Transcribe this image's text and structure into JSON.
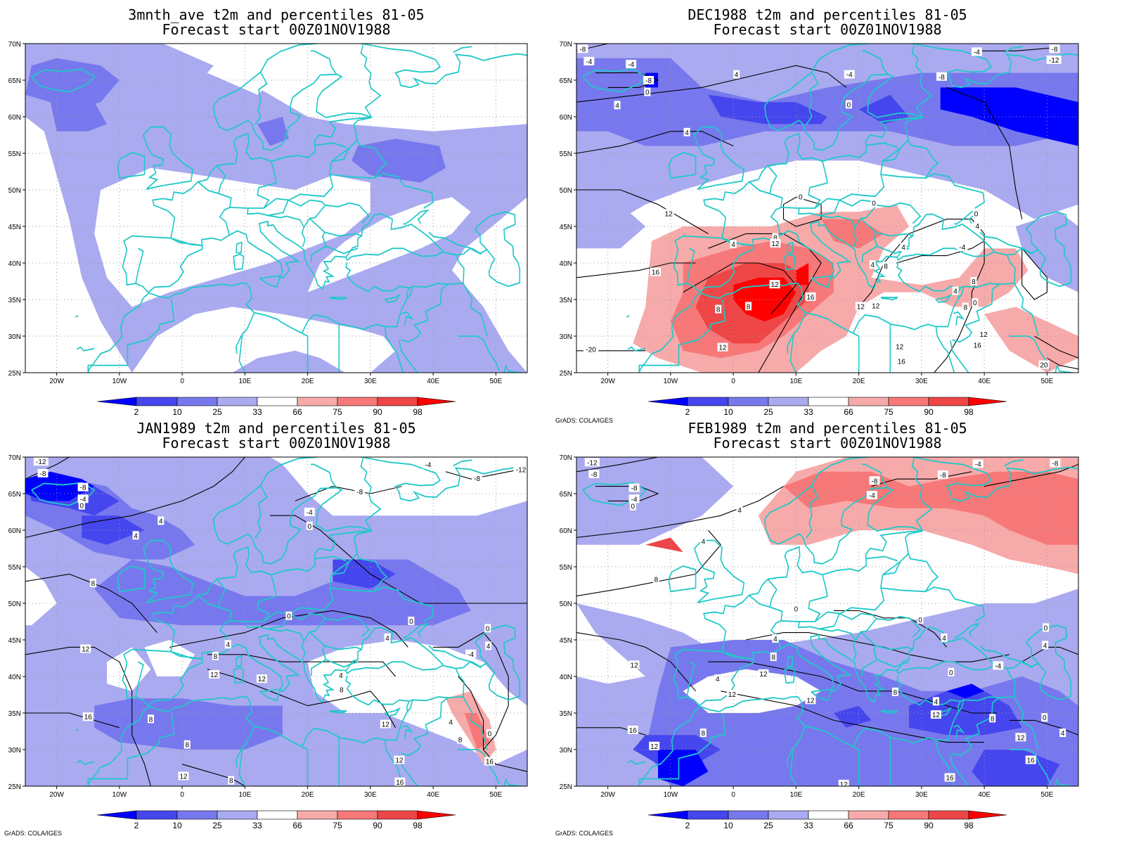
{
  "credit": "GrADS: COLA/IGES",
  "colors": {
    "c2": "#0000ff",
    "c10": "#4646ee",
    "c25": "#7878ee",
    "c33": "#aaaaf0",
    "neutral": "#ffffff",
    "c66": "#f7aaaa",
    "c75": "#f77878",
    "c90": "#ee4646",
    "c98": "#ff0000",
    "coast": "#20c8c8"
  },
  "colorbar_ticks": [
    "2",
    "10",
    "25",
    "33",
    "66",
    "75",
    "90",
    "98"
  ],
  "lon_ticks": [
    "20W",
    "10W",
    "0",
    "10E",
    "20E",
    "30E",
    "40E",
    "50E"
  ],
  "lat_ticks": [
    "70N",
    "65N",
    "60N",
    "55N",
    "50N",
    "45N",
    "40N",
    "35N",
    "30N",
    "25N"
  ],
  "panels": [
    {
      "id": "p1",
      "title1": "3mnth_ave t2m and percentiles 81-05",
      "title2": "Forecast start 00Z01NOV1988",
      "show_credit": false,
      "labels": []
    },
    {
      "id": "p2",
      "title1": "DEC1988 t2m and percentiles 81-05",
      "title2": "Forecast start 00Z01NOV1988",
      "show_credit": true,
      "labels": [
        {
          "t": "-8",
          "lon": -24,
          "lat": 69.3
        },
        {
          "t": "-4",
          "lon": -23,
          "lat": 67.6
        },
        {
          "t": "-4",
          "lon": -16.3,
          "lat": 67.2
        },
        {
          "t": "-8",
          "lon": -13.5,
          "lat": 65
        },
        {
          "t": "0",
          "lon": -13.7,
          "lat": 63.4
        },
        {
          "t": "4",
          "lon": -18.5,
          "lat": 61.6
        },
        {
          "t": "4",
          "lon": 0.5,
          "lat": 65.8
        },
        {
          "t": "4",
          "lon": -7.4,
          "lat": 57.9
        },
        {
          "t": "-4",
          "lon": 18.5,
          "lat": 65.8
        },
        {
          "t": "0",
          "lon": 18.4,
          "lat": 61.7
        },
        {
          "t": "-8",
          "lon": 33.2,
          "lat": 65.5
        },
        {
          "t": "-4",
          "lon": 38.8,
          "lat": 68.9
        },
        {
          "t": "-8",
          "lon": 51.2,
          "lat": 69.3
        },
        {
          "t": "-12",
          "lon": 51.1,
          "lat": 67.8
        },
        {
          "t": "12",
          "lon": -10.3,
          "lat": 46.8
        },
        {
          "t": "0",
          "lon": 10.7,
          "lat": 49.1
        },
        {
          "t": "0",
          "lon": 22.4,
          "lat": 48.2
        },
        {
          "t": "0",
          "lon": 38.7,
          "lat": 46.8
        },
        {
          "t": "4",
          "lon": 38.9,
          "lat": 45.1
        },
        {
          "t": "8",
          "lon": 6.7,
          "lat": 43.5
        },
        {
          "t": "12",
          "lon": 6.7,
          "lat": 42.7
        },
        {
          "t": "4",
          "lon": 0,
          "lat": 42.6
        },
        {
          "t": "16",
          "lon": -12.4,
          "lat": 38.8
        },
        {
          "t": "12",
          "lon": 6.6,
          "lat": 37.1
        },
        {
          "t": "16",
          "lon": 12.3,
          "lat": 35.4
        },
        {
          "t": "8",
          "lon": -2.4,
          "lat": 33.7
        },
        {
          "t": "8",
          "lon": 2.4,
          "lat": 34.1
        },
        {
          "t": "12",
          "lon": 20.3,
          "lat": 34.1
        },
        {
          "t": "12",
          "lon": 22.7,
          "lat": 34.2
        },
        {
          "t": "4",
          "lon": 22.2,
          "lat": 39.8
        },
        {
          "t": "8",
          "lon": 24.3,
          "lat": 39.6
        },
        {
          "t": "4",
          "lon": 27.1,
          "lat": 42.2
        },
        {
          "t": "-4",
          "lon": 36.5,
          "lat": 42.2
        },
        {
          "t": "4",
          "lon": 35.4,
          "lat": 36.2
        },
        {
          "t": "8",
          "lon": 37,
          "lat": 34
        },
        {
          "t": "0",
          "lon": 38.5,
          "lat": 34.6
        },
        {
          "t": "8",
          "lon": 38.3,
          "lat": 37.5
        },
        {
          "t": "12",
          "lon": 39.9,
          "lat": 30.3
        },
        {
          "t": "16",
          "lon": 38.9,
          "lat": 28.8
        },
        {
          "t": "12",
          "lon": 26.5,
          "lat": 28.6
        },
        {
          "t": "16",
          "lon": 26.8,
          "lat": 26.6
        },
        {
          "t": "12",
          "lon": -1.7,
          "lat": 28.5
        },
        {
          "t": "20",
          "lon": 49.5,
          "lat": 26.1
        },
        {
          "t": "-20",
          "lon": -22.7,
          "lat": 28.2
        }
      ]
    },
    {
      "id": "p3",
      "title1": "JAN1989 t2m and percentiles 81-05",
      "title2": "Forecast start 00Z01NOV1988",
      "show_credit": true,
      "labels": [
        {
          "t": "-12",
          "lon": -22.5,
          "lat": 69.4
        },
        {
          "t": "-8",
          "lon": -22.2,
          "lat": 67.8
        },
        {
          "t": "-8",
          "lon": -15.8,
          "lat": 65.9
        },
        {
          "t": "-4",
          "lon": -15.8,
          "lat": 64.3
        },
        {
          "t": "0",
          "lon": -16,
          "lat": 63.4
        },
        {
          "t": "4",
          "lon": -3.4,
          "lat": 61.3
        },
        {
          "t": "4",
          "lon": -7.4,
          "lat": 59.3
        },
        {
          "t": "8",
          "lon": -14.2,
          "lat": 52.8
        },
        {
          "t": "-4",
          "lon": 20.3,
          "lat": 62.5
        },
        {
          "t": "0",
          "lon": 20.3,
          "lat": 60.6
        },
        {
          "t": "-8",
          "lon": 28.3,
          "lat": 65.3
        },
        {
          "t": "-4",
          "lon": 39.2,
          "lat": 69
        },
        {
          "t": "-8",
          "lon": 47,
          "lat": 67.1
        },
        {
          "t": "-12",
          "lon": 54,
          "lat": 68.3
        },
        {
          "t": "12",
          "lon": -15.4,
          "lat": 43.8
        },
        {
          "t": "0",
          "lon": 17,
          "lat": 48.3
        },
        {
          "t": "0",
          "lon": 36.5,
          "lat": 47.6
        },
        {
          "t": "4",
          "lon": 32.7,
          "lat": 45.3
        },
        {
          "t": "0",
          "lon": 48.7,
          "lat": 46.6
        },
        {
          "t": "4",
          "lon": 48.8,
          "lat": 44.2
        },
        {
          "t": "-4",
          "lon": 46,
          "lat": 43.1
        },
        {
          "t": "4",
          "lon": 7.3,
          "lat": 44.4
        },
        {
          "t": "8",
          "lon": 5.3,
          "lat": 42.8
        },
        {
          "t": "12",
          "lon": 5.1,
          "lat": 40.3
        },
        {
          "t": "12",
          "lon": 12.7,
          "lat": 39.7
        },
        {
          "t": "4",
          "lon": 25.3,
          "lat": 40.2
        },
        {
          "t": "8",
          "lon": 25.4,
          "lat": 38.2
        },
        {
          "t": "16",
          "lon": -15,
          "lat": 34.5
        },
        {
          "t": "8",
          "lon": -5,
          "lat": 34.2
        },
        {
          "t": "12",
          "lon": 32.4,
          "lat": 33.5
        },
        {
          "t": "4",
          "lon": 42.8,
          "lat": 33.8
        },
        {
          "t": "0",
          "lon": 49,
          "lat": 32.2
        },
        {
          "t": "8",
          "lon": 44.3,
          "lat": 31.4
        },
        {
          "t": "8",
          "lon": 0.8,
          "lat": 30.7
        },
        {
          "t": "12",
          "lon": 34.6,
          "lat": 28.6
        },
        {
          "t": "16",
          "lon": 49,
          "lat": 28.4
        },
        {
          "t": "12",
          "lon": 0.2,
          "lat": 26.4
        },
        {
          "t": "8",
          "lon": 7.8,
          "lat": 25.8
        },
        {
          "t": "16",
          "lon": 34.7,
          "lat": 25.6
        }
      ]
    },
    {
      "id": "p4",
      "title1": "FEB1989 t2m and percentiles 81-05",
      "title2": "Forecast start 00Z01NOV1988",
      "show_credit": true,
      "labels": [
        {
          "t": "-12",
          "lon": -22.5,
          "lat": 69.3
        },
        {
          "t": "-8",
          "lon": -22.2,
          "lat": 67.7
        },
        {
          "t": "-8",
          "lon": -15.8,
          "lat": 65.8
        },
        {
          "t": "-4",
          "lon": -15.8,
          "lat": 64.3
        },
        {
          "t": "0",
          "lon": -16,
          "lat": 63.3
        },
        {
          "t": "4",
          "lon": 1,
          "lat": 62.8
        },
        {
          "t": "4",
          "lon": -4.8,
          "lat": 58.5
        },
        {
          "t": "8",
          "lon": -12.3,
          "lat": 53.3
        },
        {
          "t": "-8",
          "lon": 22.5,
          "lat": 66.8
        },
        {
          "t": "-4",
          "lon": 22.1,
          "lat": 64.8
        },
        {
          "t": "-8",
          "lon": 33.4,
          "lat": 67.6
        },
        {
          "t": "-4",
          "lon": 39,
          "lat": 69.1
        },
        {
          "t": "-8",
          "lon": 51.3,
          "lat": 69.2
        },
        {
          "t": "0",
          "lon": 10,
          "lat": 49.3
        },
        {
          "t": "0",
          "lon": 29.8,
          "lat": 47.8
        },
        {
          "t": "4",
          "lon": 33.6,
          "lat": 45.3
        },
        {
          "t": "0",
          "lon": 49.8,
          "lat": 46.7
        },
        {
          "t": "4",
          "lon": 49.7,
          "lat": 44.3
        },
        {
          "t": "-4",
          "lon": 42.2,
          "lat": 41.5
        },
        {
          "t": "4",
          "lon": 6.7,
          "lat": 45.2
        },
        {
          "t": "8",
          "lon": 6.4,
          "lat": 42.7
        },
        {
          "t": "12",
          "lon": -15.8,
          "lat": 41.6
        },
        {
          "t": "4",
          "lon": -2.5,
          "lat": 39.7
        },
        {
          "t": "12",
          "lon": 4.8,
          "lat": 40.4
        },
        {
          "t": "12",
          "lon": -0.2,
          "lat": 37.6
        },
        {
          "t": "8",
          "lon": 25.8,
          "lat": 37.9
        },
        {
          "t": "12",
          "lon": 12.3,
          "lat": 36.8
        },
        {
          "t": "4",
          "lon": 32.3,
          "lat": 36.6
        },
        {
          "t": "0",
          "lon": 34.7,
          "lat": 40.6
        },
        {
          "t": "12",
          "lon": 32.3,
          "lat": 34.8
        },
        {
          "t": "8",
          "lon": 41.3,
          "lat": 34.3
        },
        {
          "t": "0",
          "lon": 49.6,
          "lat": 34.4
        },
        {
          "t": "4",
          "lon": 52.5,
          "lat": 32.3
        },
        {
          "t": "12",
          "lon": 45.8,
          "lat": 31.7
        },
        {
          "t": "16",
          "lon": -16,
          "lat": 32.7
        },
        {
          "t": "8",
          "lon": -4.8,
          "lat": 32.3
        },
        {
          "t": "12",
          "lon": -12.6,
          "lat": 30.5
        },
        {
          "t": "16",
          "lon": 47.4,
          "lat": 28.6
        },
        {
          "t": "16",
          "lon": 34.5,
          "lat": 26.2
        },
        {
          "t": "12",
          "lon": 17.6,
          "lat": 25.3
        }
      ]
    }
  ]
}
